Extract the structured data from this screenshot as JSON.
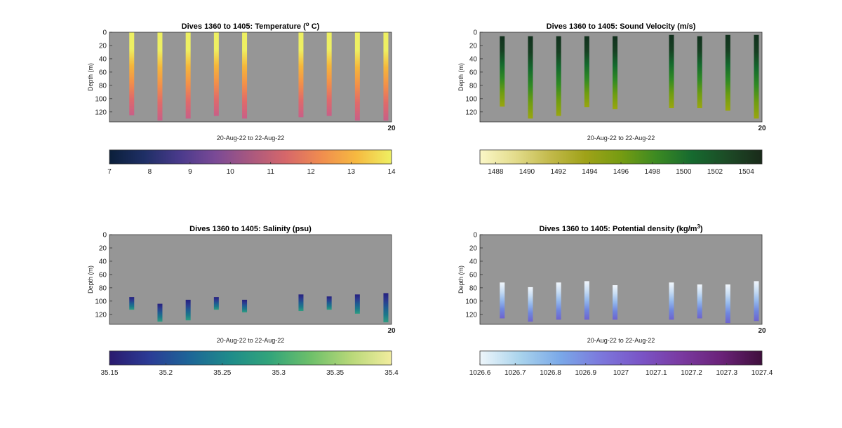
{
  "chart_data": [
    {
      "type": "heatmap",
      "title": "Dives 1360 to 1405: Temperature (",
      "title_sup": "o",
      "title_suffix": " C)",
      "xlabel": "20-Aug-22 to 22-Aug-22",
      "ylabel": "Depth (m)",
      "ylim": [
        0,
        135
      ],
      "y_reversed": true,
      "y_ticks": [
        0,
        20,
        40,
        60,
        80,
        100,
        120
      ],
      "x_corner_label": "20",
      "background": "#969696",
      "profiles": [
        {
          "x": 0.079,
          "top": 0,
          "bottom": 125
        },
        {
          "x": 0.179,
          "top": 0,
          "bottom": 133
        },
        {
          "x": 0.279,
          "top": 0,
          "bottom": 130
        },
        {
          "x": 0.379,
          "top": 0,
          "bottom": 126
        },
        {
          "x": 0.479,
          "top": 0,
          "bottom": 130
        },
        {
          "x": 0.679,
          "top": 0,
          "bottom": 128
        },
        {
          "x": 0.779,
          "top": 0,
          "bottom": 126
        },
        {
          "x": 0.879,
          "top": 0,
          "bottom": 133
        },
        {
          "x": 0.98,
          "top": 0,
          "bottom": 133
        }
      ],
      "profile_gradient": [
        "#eef062",
        "#eef062",
        "#f5b63a",
        "#f39048",
        "#e06a6a",
        "#c85f87"
      ],
      "colorbar": {
        "min": 7,
        "max": 14,
        "ticks": [
          7,
          8,
          9,
          10,
          11,
          12,
          13,
          14
        ],
        "colors": [
          "#0b1f3a",
          "#1f2f66",
          "#4a3a8c",
          "#7a4a96",
          "#a9587f",
          "#d6676a",
          "#f08c4f",
          "#f6b940",
          "#eef062"
        ]
      }
    },
    {
      "type": "heatmap",
      "title": "Dives 1360 to 1405: Sound Velocity (m/s)",
      "xlabel": "20-Aug-22 to 22-Aug-22",
      "ylabel": "Depth (m)",
      "ylim": [
        0,
        135
      ],
      "y_reversed": true,
      "y_ticks": [
        0,
        20,
        40,
        60,
        80,
        100,
        120
      ],
      "x_corner_label": "20",
      "background": "#969696",
      "profiles": [
        {
          "x": 0.079,
          "top": 6,
          "bottom": 112
        },
        {
          "x": 0.179,
          "top": 6,
          "bottom": 130
        },
        {
          "x": 0.279,
          "top": 6,
          "bottom": 126
        },
        {
          "x": 0.379,
          "top": 6,
          "bottom": 113
        },
        {
          "x": 0.479,
          "top": 6,
          "bottom": 116
        },
        {
          "x": 0.679,
          "top": 4,
          "bottom": 114
        },
        {
          "x": 0.779,
          "top": 6,
          "bottom": 114
        },
        {
          "x": 0.879,
          "top": 4,
          "bottom": 118
        },
        {
          "x": 0.98,
          "top": 4,
          "bottom": 130
        }
      ],
      "profile_gradient": [
        "#12301e",
        "#163f22",
        "#146a2d",
        "#2f8a24",
        "#6e9d10",
        "#9aa60f"
      ],
      "colorbar": {
        "min": 1487,
        "max": 1505,
        "ticks": [
          1488,
          1490,
          1492,
          1494,
          1496,
          1498,
          1500,
          1502,
          1504
        ],
        "colors": [
          "#fbf7c7",
          "#e3dc8c",
          "#c2b94a",
          "#9fa218",
          "#769c12",
          "#3c8a22",
          "#166a2f",
          "#1c4b26",
          "#1a2a1a"
        ]
      }
    },
    {
      "type": "heatmap",
      "title": "Dives 1360 to 1405: Salinity (psu)",
      "xlabel": "20-Aug-22 to 22-Aug-22",
      "ylabel": "Depth (m)",
      "ylim": [
        0,
        135
      ],
      "y_reversed": true,
      "y_ticks": [
        0,
        20,
        40,
        60,
        80,
        100,
        120
      ],
      "x_corner_label": "20",
      "background": "#969696",
      "profiles": [
        {
          "x": 0.079,
          "top": 94,
          "bottom": 113
        },
        {
          "x": 0.179,
          "top": 104,
          "bottom": 131
        },
        {
          "x": 0.279,
          "top": 98,
          "bottom": 129
        },
        {
          "x": 0.379,
          "top": 94,
          "bottom": 113
        },
        {
          "x": 0.479,
          "top": 98,
          "bottom": 117
        },
        {
          "x": 0.679,
          "top": 90,
          "bottom": 115
        },
        {
          "x": 0.779,
          "top": 93,
          "bottom": 113
        },
        {
          "x": 0.879,
          "top": 90,
          "bottom": 119
        },
        {
          "x": 0.98,
          "top": 88,
          "bottom": 132
        }
      ],
      "profile_gradient": [
        "#25207f",
        "#2b3a8f",
        "#1f5d92",
        "#1c7a8a",
        "#2f9d82"
      ],
      "colorbar": {
        "min": 35.15,
        "max": 35.4,
        "ticks": [
          35.15,
          35.2,
          35.25,
          35.3,
          35.35,
          35.4
        ],
        "colors": [
          "#2a1a6e",
          "#2b3c96",
          "#1d6697",
          "#1e8c8a",
          "#33a57a",
          "#6ec06a",
          "#b8d879",
          "#f2ed9e"
        ]
      }
    },
    {
      "type": "heatmap",
      "title": "Dives 1360 to 1405: Potential density (kg/m",
      "title_sup": "3",
      "title_suffix": ")",
      "xlabel": "20-Aug-22 to 22-Aug-22",
      "ylabel": "Depth (m)",
      "ylim": [
        0,
        135
      ],
      "y_reversed": true,
      "y_ticks": [
        0,
        20,
        40,
        60,
        80,
        100,
        120
      ],
      "x_corner_label": "20",
      "background": "#969696",
      "profiles": [
        {
          "x": 0.079,
          "top": 72,
          "bottom": 126
        },
        {
          "x": 0.179,
          "top": 79,
          "bottom": 131
        },
        {
          "x": 0.279,
          "top": 72,
          "bottom": 128
        },
        {
          "x": 0.379,
          "top": 70,
          "bottom": 128
        },
        {
          "x": 0.479,
          "top": 76,
          "bottom": 128
        },
        {
          "x": 0.679,
          "top": 72,
          "bottom": 128
        },
        {
          "x": 0.779,
          "top": 75,
          "bottom": 126
        },
        {
          "x": 0.879,
          "top": 75,
          "bottom": 133
        },
        {
          "x": 0.98,
          "top": 70,
          "bottom": 130
        }
      ],
      "profile_gradient": [
        "#f1f6fc",
        "#c8ddf3",
        "#93b7ec",
        "#6f86de",
        "#6e63cf"
      ],
      "colorbar": {
        "min": 1026.6,
        "max": 1027.4,
        "ticks": [
          1026.6,
          1026.7,
          1026.8,
          1026.9,
          1027,
          1027.1,
          1027.2,
          1027.3,
          1027.4
        ],
        "colors": [
          "#eef6fb",
          "#a9d3ec",
          "#7aa8e8",
          "#7c78dc",
          "#7a54c6",
          "#7a3aa0",
          "#6a2278",
          "#3f0f3c"
        ]
      }
    }
  ]
}
